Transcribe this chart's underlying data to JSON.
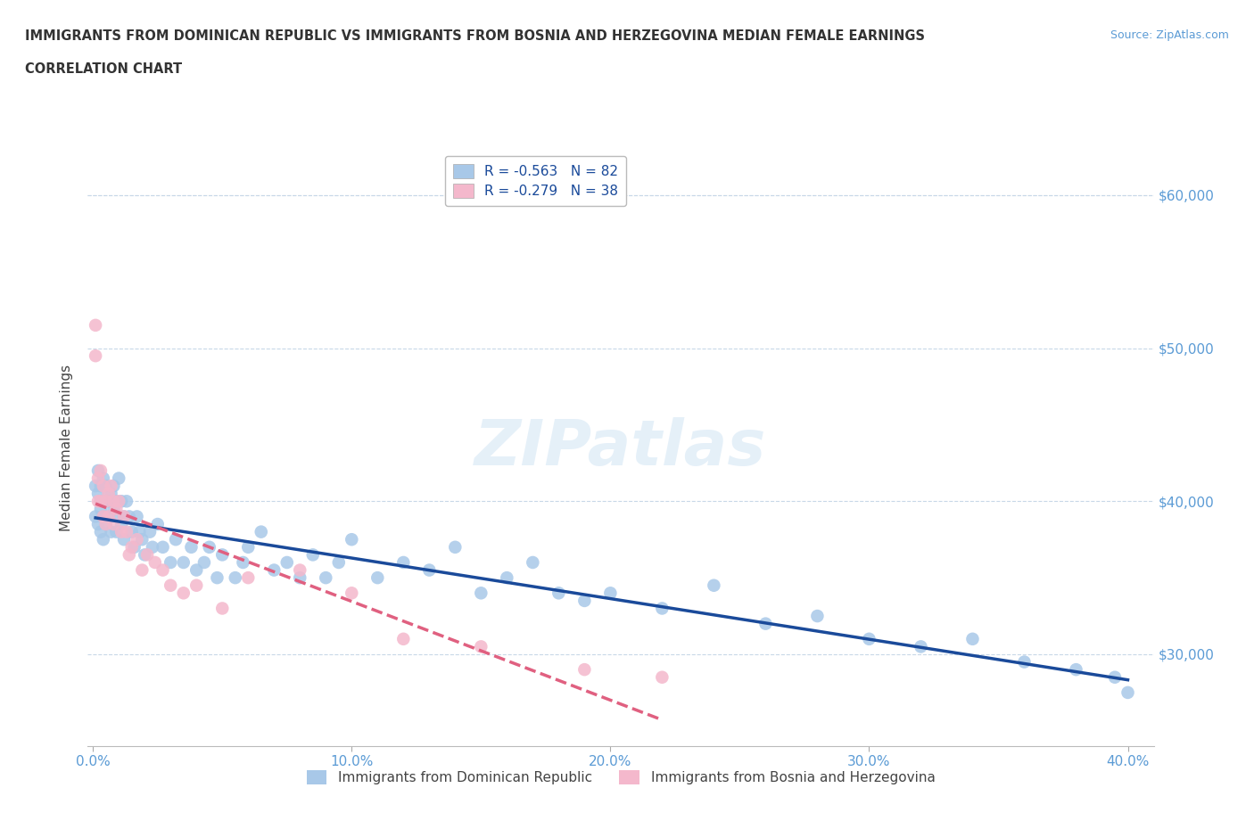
{
  "title_line1": "IMMIGRANTS FROM DOMINICAN REPUBLIC VS IMMIGRANTS FROM BOSNIA AND HERZEGOVINA MEDIAN FEMALE EARNINGS",
  "title_line2": "CORRELATION CHART",
  "source_text": "Source: ZipAtlas.com",
  "ylabel": "Median Female Earnings",
  "xlim": [
    -0.002,
    0.41
  ],
  "ylim": [
    24000,
    63000
  ],
  "xticks": [
    0.0,
    0.1,
    0.2,
    0.3,
    0.4
  ],
  "xticklabels": [
    "0.0%",
    "10.0%",
    "20.0%",
    "30.0%",
    "40.0%"
  ],
  "yticks": [
    30000,
    40000,
    50000,
    60000
  ],
  "yticklabels": [
    "$30,000",
    "$40,000",
    "$50,000",
    "$60,000"
  ],
  "watermark": "ZIPatlas",
  "legend_labels": [
    "Immigrants from Dominican Republic",
    "Immigrants from Bosnia and Herzegovina"
  ],
  "legend_r": [
    -0.563,
    -0.279
  ],
  "legend_n": [
    82,
    38
  ],
  "blue_color": "#a8c8e8",
  "pink_color": "#f4b8cc",
  "blue_line_color": "#1a4a9a",
  "pink_line_color": "#e06080",
  "title_color": "#333333",
  "axis_color": "#5b9bd5",
  "grid_color": "#c8d8e8",
  "blue_x": [
    0.001,
    0.001,
    0.002,
    0.002,
    0.002,
    0.003,
    0.003,
    0.003,
    0.003,
    0.004,
    0.004,
    0.004,
    0.005,
    0.005,
    0.005,
    0.006,
    0.006,
    0.007,
    0.007,
    0.008,
    0.008,
    0.009,
    0.009,
    0.01,
    0.01,
    0.011,
    0.011,
    0.012,
    0.012,
    0.013,
    0.014,
    0.015,
    0.016,
    0.017,
    0.018,
    0.019,
    0.02,
    0.022,
    0.023,
    0.025,
    0.027,
    0.03,
    0.032,
    0.035,
    0.038,
    0.04,
    0.043,
    0.045,
    0.048,
    0.05,
    0.055,
    0.058,
    0.06,
    0.065,
    0.07,
    0.075,
    0.08,
    0.085,
    0.09,
    0.095,
    0.1,
    0.11,
    0.12,
    0.13,
    0.14,
    0.15,
    0.16,
    0.17,
    0.18,
    0.19,
    0.2,
    0.22,
    0.24,
    0.26,
    0.28,
    0.3,
    0.32,
    0.34,
    0.36,
    0.38,
    0.395,
    0.4
  ],
  "blue_y": [
    41000,
    39000,
    40500,
    38500,
    42000,
    41000,
    39500,
    38000,
    40000,
    41500,
    39000,
    37500,
    40000,
    38500,
    41000,
    40000,
    39000,
    40500,
    38000,
    41000,
    39500,
    40000,
    38000,
    41500,
    39000,
    40000,
    38500,
    37500,
    39000,
    40000,
    39000,
    38000,
    37000,
    39000,
    38000,
    37500,
    36500,
    38000,
    37000,
    38500,
    37000,
    36000,
    37500,
    36000,
    37000,
    35500,
    36000,
    37000,
    35000,
    36500,
    35000,
    36000,
    37000,
    38000,
    35500,
    36000,
    35000,
    36500,
    35000,
    36000,
    37500,
    35000,
    36000,
    35500,
    37000,
    34000,
    35000,
    36000,
    34000,
    33500,
    34000,
    33000,
    34500,
    32000,
    32500,
    31000,
    30500,
    31000,
    29500,
    29000,
    28500,
    27500
  ],
  "pink_x": [
    0.001,
    0.001,
    0.002,
    0.002,
    0.003,
    0.003,
    0.004,
    0.004,
    0.005,
    0.005,
    0.006,
    0.006,
    0.007,
    0.008,
    0.008,
    0.009,
    0.01,
    0.011,
    0.012,
    0.013,
    0.014,
    0.015,
    0.017,
    0.019,
    0.021,
    0.024,
    0.027,
    0.03,
    0.035,
    0.04,
    0.05,
    0.06,
    0.08,
    0.1,
    0.12,
    0.15,
    0.19,
    0.22
  ],
  "pink_y": [
    51500,
    49500,
    41500,
    40000,
    42000,
    40000,
    41000,
    39000,
    40000,
    38500,
    40500,
    39000,
    41000,
    40000,
    38500,
    39500,
    40000,
    38000,
    39000,
    38000,
    36500,
    37000,
    37500,
    35500,
    36500,
    36000,
    35500,
    34500,
    34000,
    34500,
    33000,
    35000,
    35500,
    34000,
    31000,
    30500,
    29000,
    28500
  ]
}
